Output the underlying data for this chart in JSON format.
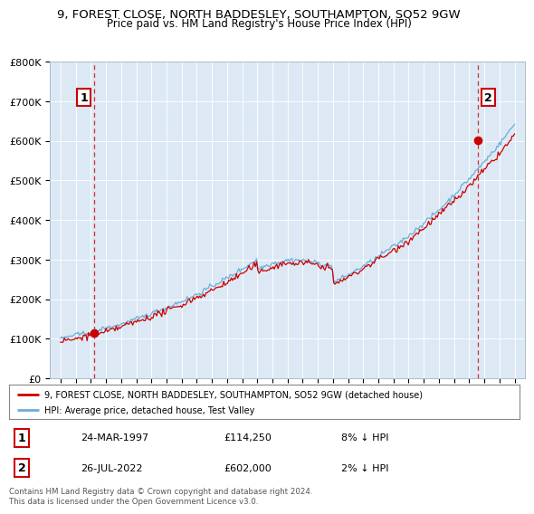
{
  "title": "9, FOREST CLOSE, NORTH BADDESLEY, SOUTHAMPTON, SO52 9GW",
  "subtitle": "Price paid vs. HM Land Registry's House Price Index (HPI)",
  "ylim": [
    0,
    800000
  ],
  "yticks": [
    0,
    100000,
    200000,
    300000,
    400000,
    500000,
    600000,
    700000,
    800000
  ],
  "ytick_labels": [
    "£0",
    "£100K",
    "£200K",
    "£300K",
    "£400K",
    "£500K",
    "£600K",
    "£700K",
    "£800K"
  ],
  "x_start_year": 1995,
  "x_end_year": 2025,
  "hpi_color": "#6baed6",
  "price_color": "#cc0000",
  "point1_year": 1997.23,
  "point1_value": 114250,
  "point2_year": 2022.55,
  "point2_value": 602000,
  "legend_entry1": "9, FOREST CLOSE, NORTH BADDESLEY, SOUTHAMPTON, SO52 9GW (detached house)",
  "legend_entry2": "HPI: Average price, detached house, Test Valley",
  "table_row1_date": "24-MAR-1997",
  "table_row1_price": "£114,250",
  "table_row1_hpi": "8% ↓ HPI",
  "table_row2_date": "26-JUL-2022",
  "table_row2_price": "£602,000",
  "table_row2_hpi": "2% ↓ HPI",
  "footer": "Contains HM Land Registry data © Crown copyright and database right 2024.\nThis data is licensed under the Open Government Licence v3.0.",
  "plot_bg_color": "#dce9f5"
}
